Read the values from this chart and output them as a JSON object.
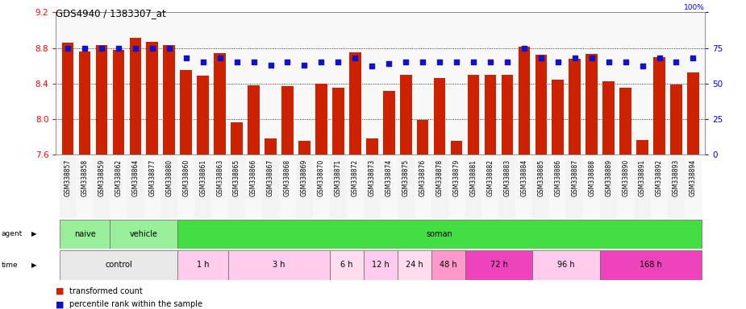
{
  "title": "GDS4940 / 1383307_at",
  "samples": [
    "GSM338857",
    "GSM338858",
    "GSM338859",
    "GSM338862",
    "GSM338864",
    "GSM338877",
    "GSM338880",
    "GSM338860",
    "GSM338861",
    "GSM338863",
    "GSM338865",
    "GSM338866",
    "GSM338867",
    "GSM338868",
    "GSM338869",
    "GSM338870",
    "GSM338871",
    "GSM338872",
    "GSM338873",
    "GSM338874",
    "GSM338875",
    "GSM338876",
    "GSM338878",
    "GSM338879",
    "GSM338881",
    "GSM338882",
    "GSM338883",
    "GSM338884",
    "GSM338885",
    "GSM338886",
    "GSM338887",
    "GSM338888",
    "GSM338889",
    "GSM338890",
    "GSM338891",
    "GSM338892",
    "GSM338893",
    "GSM338894"
  ],
  "bar_values": [
    8.86,
    8.76,
    8.83,
    8.78,
    8.91,
    8.87,
    8.83,
    8.55,
    8.49,
    8.74,
    7.96,
    8.38,
    7.78,
    8.37,
    7.75,
    8.4,
    8.35,
    8.75,
    7.78,
    8.32,
    8.5,
    7.99,
    8.46,
    7.75,
    8.5,
    8.5,
    8.5,
    8.81,
    8.72,
    8.44,
    8.68,
    8.73,
    8.42,
    8.35,
    7.76,
    8.7,
    8.39,
    8.52
  ],
  "percentile_values": [
    75,
    75,
    75,
    75,
    75,
    75,
    75,
    68,
    65,
    68,
    65,
    65,
    63,
    65,
    63,
    65,
    65,
    68,
    62,
    64,
    65,
    65,
    65,
    65,
    65,
    65,
    65,
    75,
    68,
    65,
    68,
    68,
    65,
    65,
    62,
    68,
    65,
    68
  ],
  "ylim_left": [
    7.6,
    9.2
  ],
  "ylim_right": [
    0,
    100
  ],
  "yticks_left": [
    7.6,
    8.0,
    8.4,
    8.8,
    9.2
  ],
  "yticks_right": [
    0,
    25,
    50,
    75,
    100
  ],
  "bar_color": "#cc2200",
  "percentile_color": "#1111cc",
  "agent_groups": [
    {
      "label": "naive",
      "start": 0,
      "end": 3,
      "color": "#99ee99"
    },
    {
      "label": "vehicle",
      "start": 3,
      "end": 7,
      "color": "#99ee99"
    },
    {
      "label": "soman",
      "start": 7,
      "end": 38,
      "color": "#44dd44"
    }
  ],
  "time_groups": [
    {
      "label": "control",
      "start": 0,
      "end": 7,
      "color": "#e8e8e8"
    },
    {
      "label": "1 h",
      "start": 7,
      "end": 10,
      "color": "#ffccee"
    },
    {
      "label": "3 h",
      "start": 10,
      "end": 16,
      "color": "#ffccee"
    },
    {
      "label": "6 h",
      "start": 16,
      "end": 18,
      "color": "#ffddee"
    },
    {
      "label": "12 h",
      "start": 18,
      "end": 20,
      "color": "#ffccee"
    },
    {
      "label": "24 h",
      "start": 20,
      "end": 22,
      "color": "#ffddee"
    },
    {
      "label": "48 h",
      "start": 22,
      "end": 24,
      "color": "#ff99cc"
    },
    {
      "label": "72 h",
      "start": 24,
      "end": 28,
      "color": "#ee44bb"
    },
    {
      "label": "96 h",
      "start": 28,
      "end": 32,
      "color": "#ffccee"
    },
    {
      "label": "168 h",
      "start": 32,
      "end": 38,
      "color": "#ee44bb"
    }
  ]
}
